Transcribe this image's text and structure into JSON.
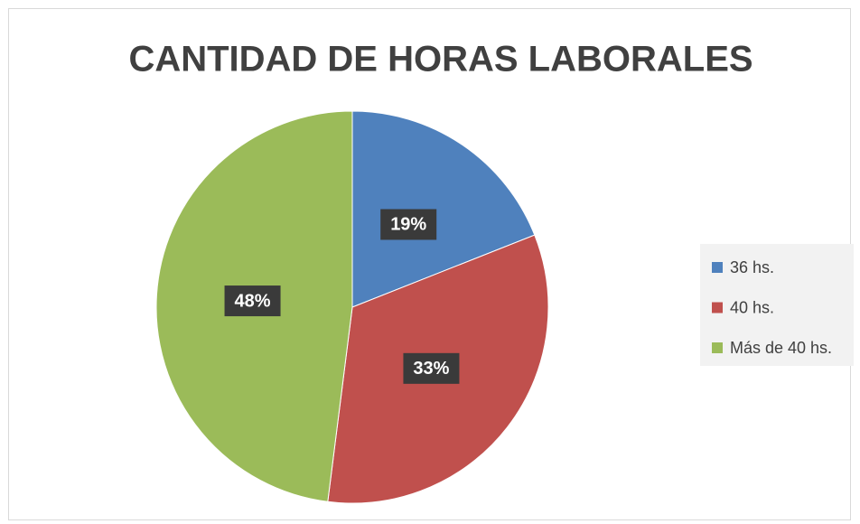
{
  "chart_data": {
    "type": "pie",
    "title": "CANTIDAD DE HORAS LABORALES",
    "categories": [
      "36 hs.",
      "40 hs.",
      "Más de 40 hs."
    ],
    "values": [
      19,
      33,
      48
    ],
    "value_labels": [
      "19%",
      "33%",
      "48%"
    ],
    "colors": [
      "#4f81bd",
      "#c0504d",
      "#9bbb59"
    ],
    "legend": "right"
  }
}
